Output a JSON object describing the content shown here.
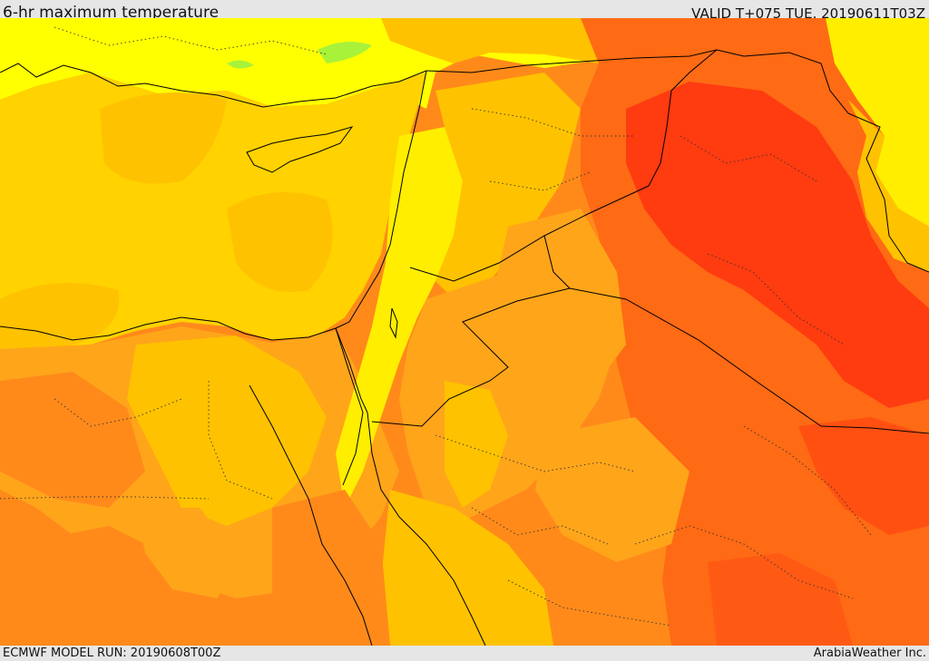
{
  "header": {
    "title": "6-hr maximum temperature",
    "valid_time": "VALID T+075 TUE. 20190611T03Z"
  },
  "footer": {
    "model_run": "ECMWF MODEL RUN: 20190608T00Z",
    "credit": "ArabiaWeather Inc."
  },
  "map": {
    "colors": {
      "very_hot": "#ff3b10",
      "hot": "#ff6a14",
      "warm": "#ff8a1a",
      "mild_warm": "#ffa51a",
      "mild": "#ffc200",
      "sea": "#ffd200",
      "cool": "#ffee00",
      "cooler": "#ffff00",
      "coolest": "#a8f23a"
    }
  }
}
